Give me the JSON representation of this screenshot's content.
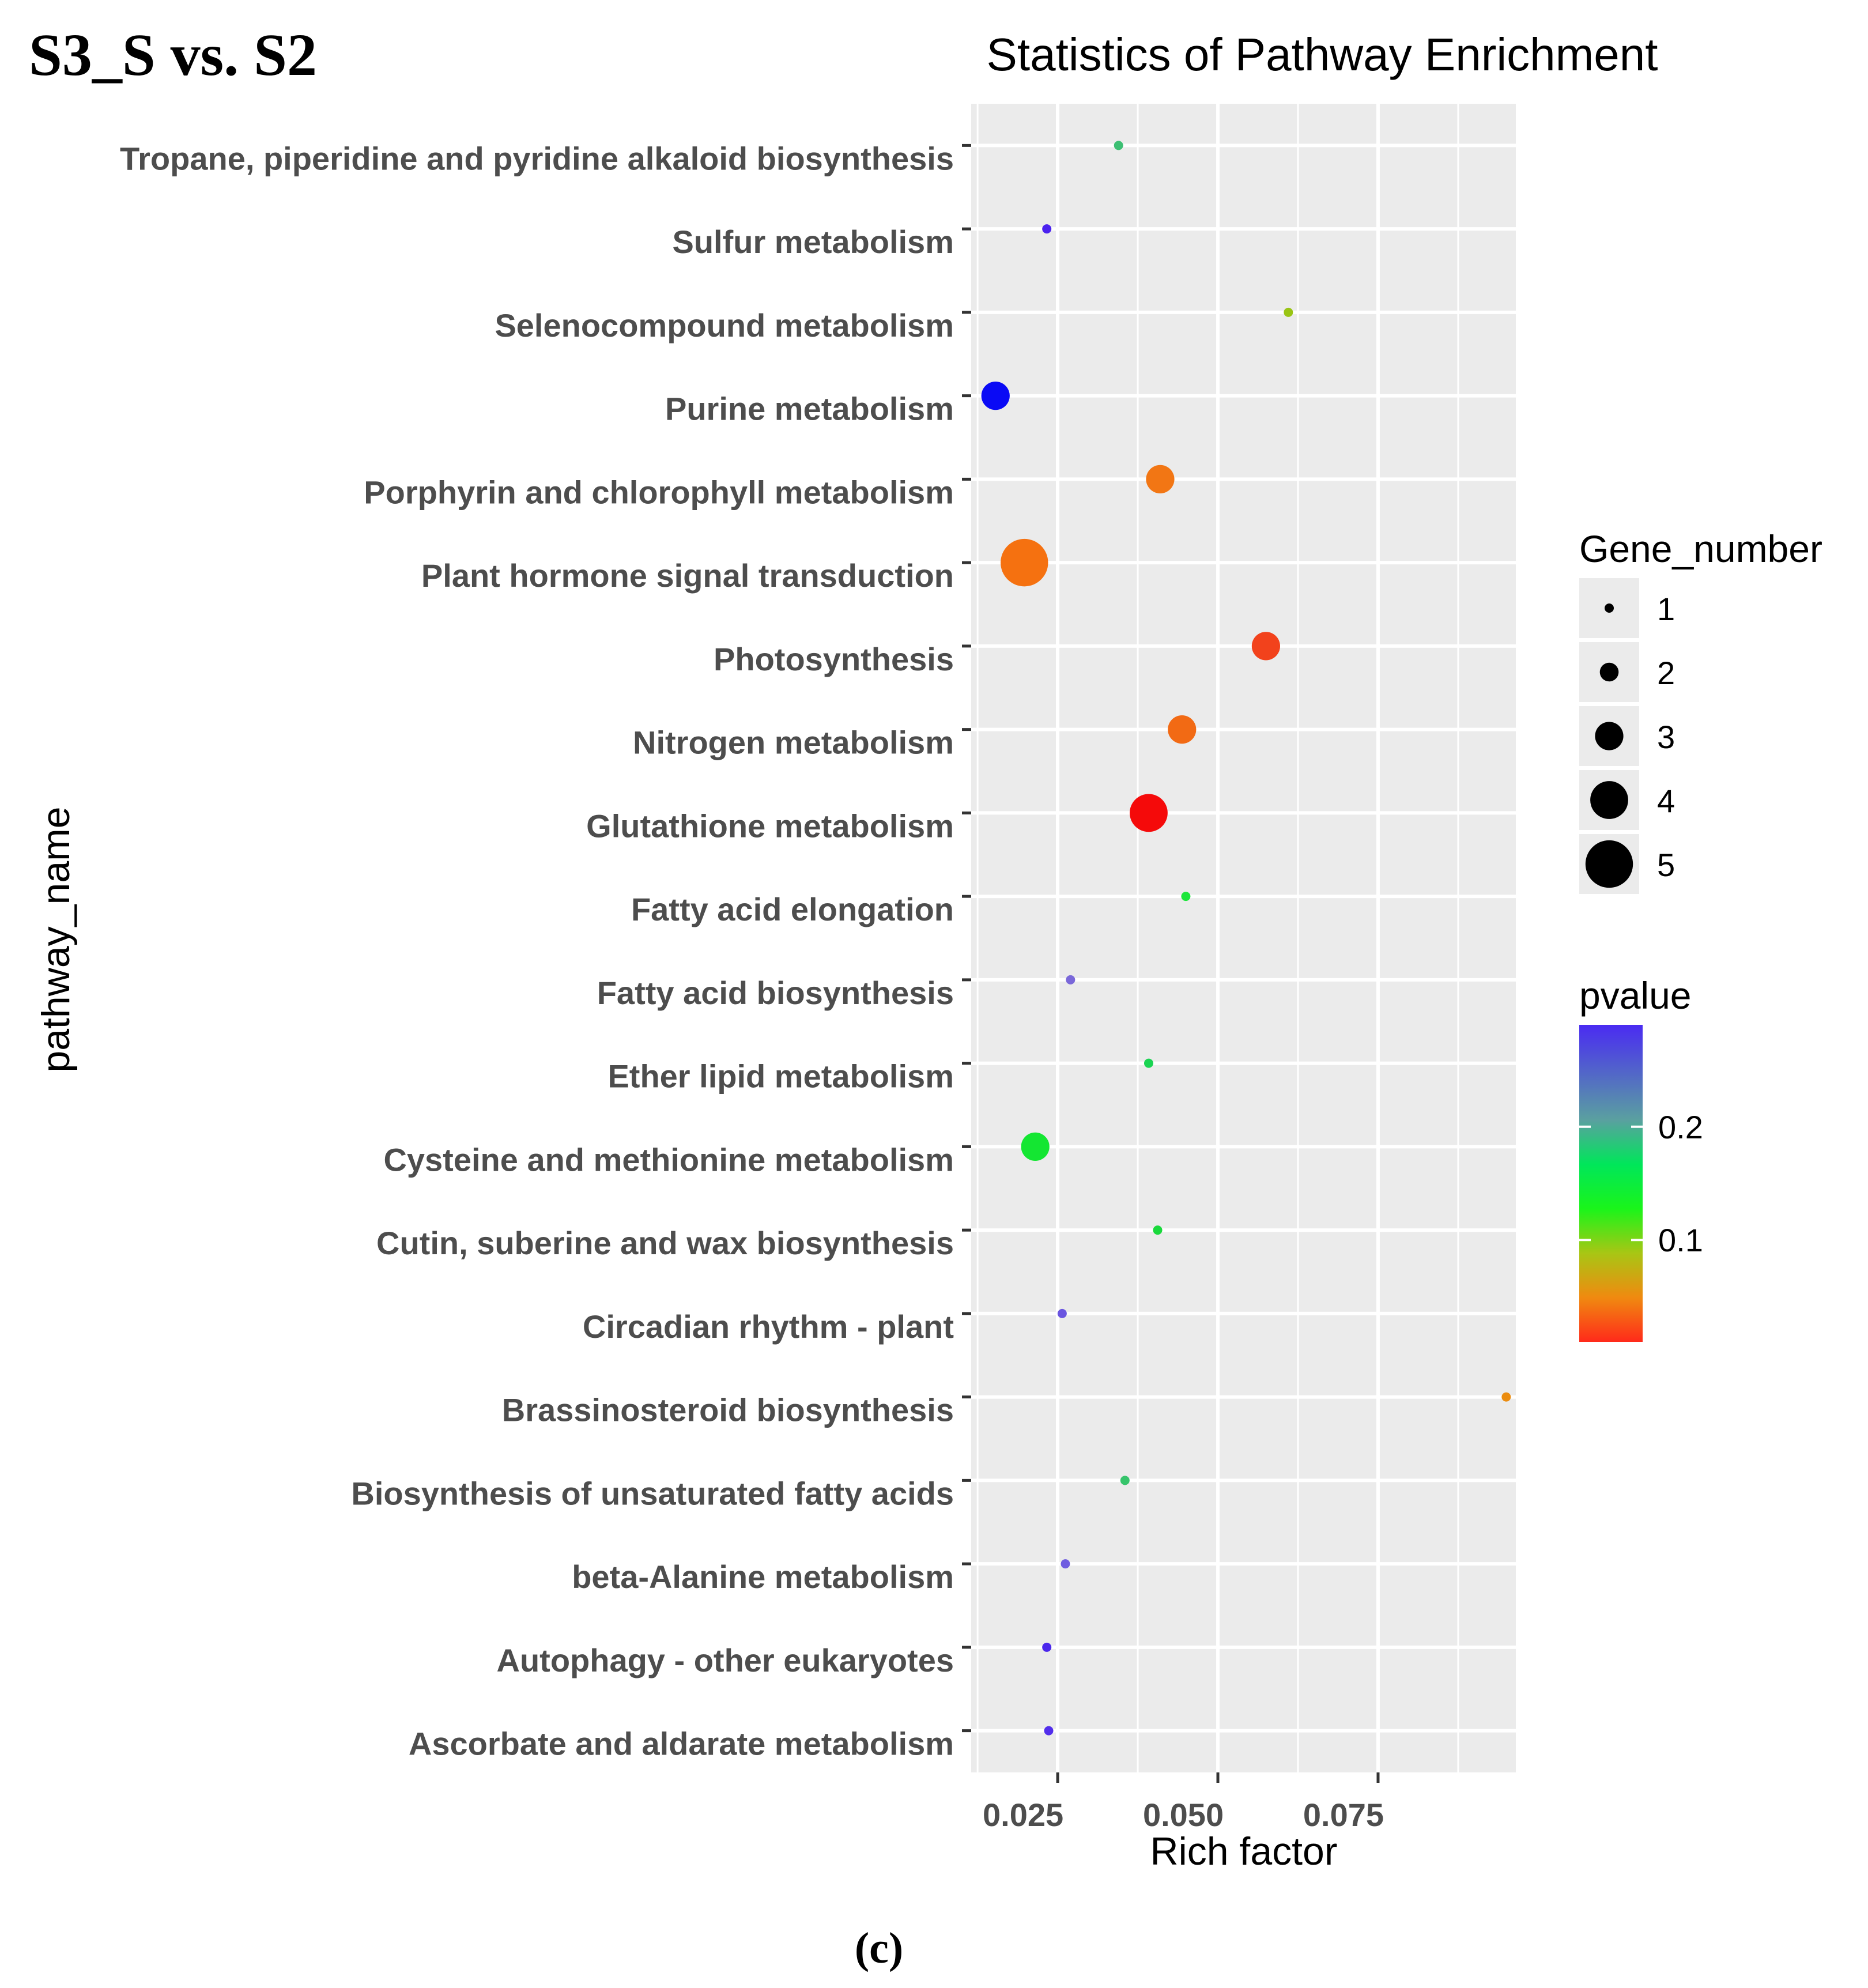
{
  "panel_title": "S3_S vs. S2",
  "panel_label": "(c)",
  "chart_data": {
    "type": "scatter",
    "title": "Statistics of Pathway Enrichment",
    "xlabel": "Rich factor",
    "ylabel": "pathway_name",
    "xlim": [
      0.0115,
      0.0965
    ],
    "xticks": [
      "0.025",
      "0.050",
      "0.075"
    ],
    "xtick_values": [
      0.025,
      0.05,
      0.075
    ],
    "grid": true,
    "size_legend": {
      "title": "Gene_number",
      "values": [
        1,
        2,
        3,
        4,
        5
      ],
      "labels": [
        "1",
        "2",
        "3",
        "4",
        "5"
      ]
    },
    "color_legend": {
      "title": "pvalue",
      "range": [
        0.01,
        0.29
      ],
      "ticks": [
        "0.2",
        "0.1"
      ],
      "tick_values": [
        0.2,
        0.1
      ]
    },
    "points": [
      {
        "pathway": "Tropane, piperidine and pyridine alkaloid biosynthesis",
        "rich_factor": 0.0345,
        "gene_number": 1,
        "color": "#3dbf73"
      },
      {
        "pathway": "Sulfur metabolism",
        "rich_factor": 0.0233,
        "gene_number": 1,
        "color": "#4b22ef"
      },
      {
        "pathway": "Selenocompound metabolism",
        "rich_factor": 0.061,
        "gene_number": 1,
        "color": "#99c414"
      },
      {
        "pathway": "Purine metabolism",
        "rich_factor": 0.0153,
        "gene_number": 3,
        "color": "#0a0af5"
      },
      {
        "pathway": "Porphyrin and chlorophyll metabolism",
        "rich_factor": 0.041,
        "gene_number": 3,
        "color": "#f27614"
      },
      {
        "pathway": "Plant hormone signal transduction",
        "rich_factor": 0.0198,
        "gene_number": 5,
        "color": "#f57110"
      },
      {
        "pathway": "Photosynthesis",
        "rich_factor": 0.0575,
        "gene_number": 3,
        "color": "#f2421c"
      },
      {
        "pathway": "Nitrogen metabolism",
        "rich_factor": 0.0444,
        "gene_number": 3,
        "color": "#f26a14"
      },
      {
        "pathway": "Glutathione metabolism",
        "rich_factor": 0.0392,
        "gene_number": 4,
        "color": "#f50a0a"
      },
      {
        "pathway": "Fatty acid elongation",
        "rich_factor": 0.045,
        "gene_number": 1,
        "color": "#1ce63a"
      },
      {
        "pathway": "Fatty acid biosynthesis",
        "rich_factor": 0.027,
        "gene_number": 1,
        "color": "#7a68d9"
      },
      {
        "pathway": "Ether lipid metabolism",
        "rich_factor": 0.0392,
        "gene_number": 1,
        "color": "#1ad452"
      },
      {
        "pathway": "Cysteine and methionine metabolism",
        "rich_factor": 0.0215,
        "gene_number": 3,
        "color": "#14e632"
      },
      {
        "pathway": "Cutin, suberine and wax biosynthesis",
        "rich_factor": 0.0406,
        "gene_number": 1,
        "color": "#1ad93c"
      },
      {
        "pathway": "Circadian rhythm - plant",
        "rich_factor": 0.0257,
        "gene_number": 1,
        "color": "#6a55e0"
      },
      {
        "pathway": "Brassinosteroid biosynthesis",
        "rich_factor": 0.095,
        "gene_number": 1,
        "color": "#eb8c0f"
      },
      {
        "pathway": "Biosynthesis of unsaturated fatty acids",
        "rich_factor": 0.0355,
        "gene_number": 1,
        "color": "#36c46b"
      },
      {
        "pathway": "beta-Alanine metabolism",
        "rich_factor": 0.0262,
        "gene_number": 1,
        "color": "#6f5ce0"
      },
      {
        "pathway": "Autophagy - other eukaryotes",
        "rich_factor": 0.0233,
        "gene_number": 1,
        "color": "#4b27ec"
      },
      {
        "pathway": "Ascorbate and aldarate metabolism",
        "rich_factor": 0.0236,
        "gene_number": 1,
        "color": "#522eeb"
      }
    ]
  }
}
